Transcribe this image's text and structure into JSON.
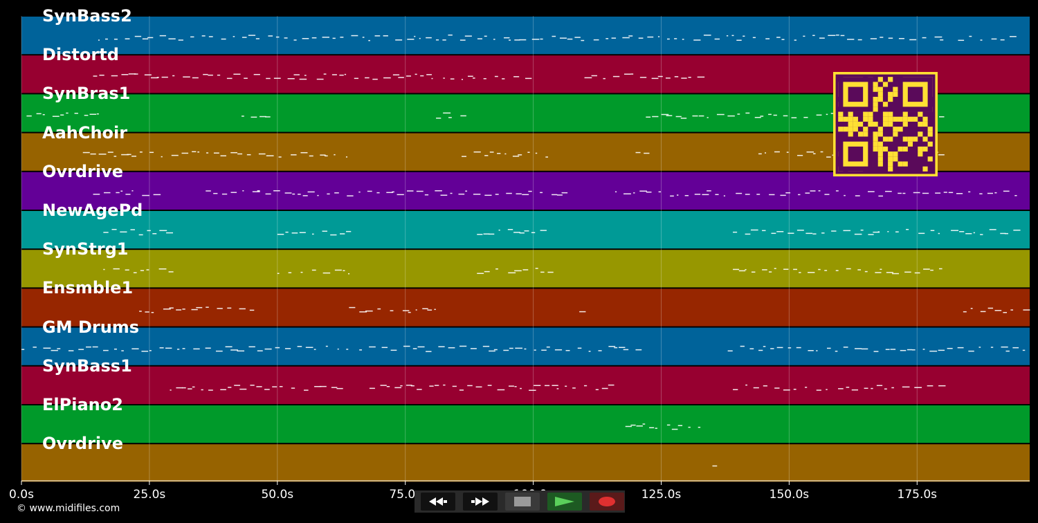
{
  "tracks": [
    {
      "label": "SynBass2",
      "color": "#00639a"
    },
    {
      "label": "Distortd",
      "color": "#970030"
    },
    {
      "label": "SynBras1",
      "color": "#009a2a"
    },
    {
      "label": "AahChoir",
      "color": "#976300"
    },
    {
      "label": "Ovrdrive",
      "color": "#630097"
    },
    {
      "label": "NewAgePd",
      "color": "#009a96"
    },
    {
      "label": "SynStrg1",
      "color": "#979700"
    },
    {
      "label": "Ensmble1",
      "color": "#972600"
    },
    {
      "label": "GM Drums",
      "color": "#00639a"
    },
    {
      "label": "SynBass1",
      "color": "#970030"
    },
    {
      "label": "ElPiano2",
      "color": "#009a2a"
    },
    {
      "label": "Ovrdrive",
      "color": "#976300"
    }
  ],
  "timeline": {
    "max_seconds": 197,
    "ticks": [
      {
        "value": 0,
        "label": "0.0s"
      },
      {
        "value": 25,
        "label": "25.0s"
      },
      {
        "value": 50,
        "label": "50.0s"
      },
      {
        "value": 75,
        "label": "75.0s"
      },
      {
        "value": 100,
        "label": "100.0s"
      },
      {
        "value": 125,
        "label": "125.0s"
      },
      {
        "value": 150,
        "label": "150.0s"
      },
      {
        "value": 175,
        "label": "175.0s"
      }
    ]
  },
  "transport": {
    "rewind_icon": "rewind-icon",
    "forward_icon": "fast-forward-icon",
    "stop_icon": "stop-icon",
    "play_icon": "play-icon",
    "record_icon": "record-icon"
  },
  "qr_color": "#ffe033",
  "qr_dark": "#5a0a5a",
  "copyright": "© www.midifiles.com"
}
